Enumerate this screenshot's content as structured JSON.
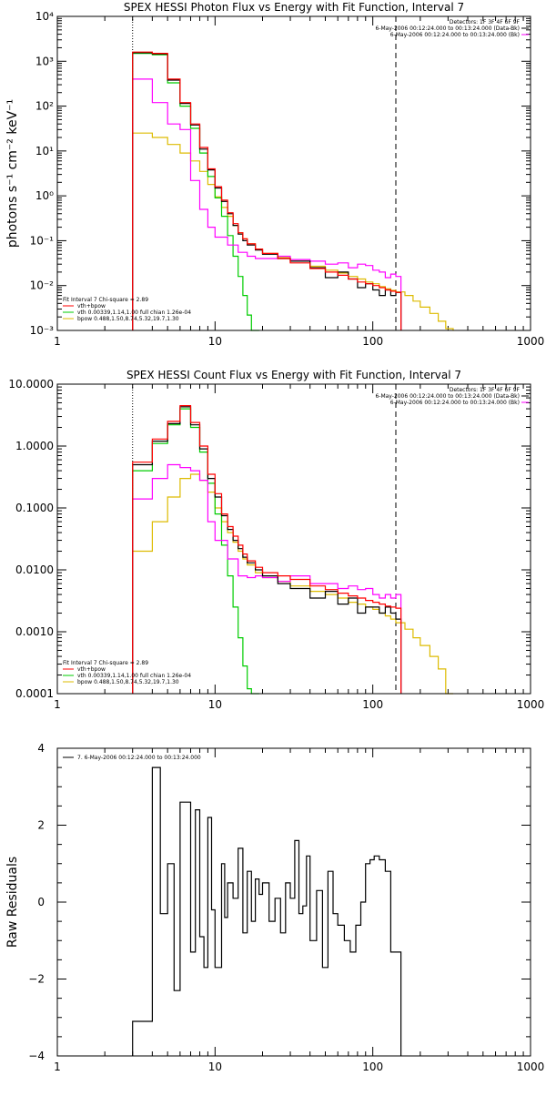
{
  "colors": {
    "sum": "#000000",
    "fit_total": "#ff0000",
    "vth": "#00cc00",
    "bpow": "#ddbb00",
    "bk": "#ff00ff",
    "marker": "#000000"
  },
  "chart_data": [
    {
      "type": "line",
      "step": true,
      "title": "SPEX HESSI Photon Flux vs Energy with Fit Function, Interval 7",
      "xlabel": "",
      "ylabel": "photons s⁻¹ cm⁻² keV⁻¹",
      "xscale": "log",
      "yscale": "log",
      "xlim": [
        1,
        1000
      ],
      "ylim": [
        0.001,
        10000
      ],
      "x_ticks": [
        "1",
        "10",
        "100",
        "1000"
      ],
      "y_ticks": [
        "10⁻³",
        "10⁻²",
        "10⁻¹",
        "10⁰",
        "10¹",
        "10²",
        "10³",
        "10⁴"
      ],
      "vlines": [
        {
          "x": 3,
          "style": "dotted"
        },
        {
          "x": 140,
          "style": "dashed"
        }
      ],
      "legend_right": {
        "detectors": "Detectors: 1F 3F 4F 6F 9F",
        "entries": [
          {
            "label": "6-May-2006 00:12:24.000 to 00:13:24.000 (Data-Bk)",
            "series": "sum"
          },
          {
            "label": "6-May-2006 00:12:24.000 to 00:13:24.000 (Bk)",
            "series": "bk"
          }
        ]
      },
      "legend_left": {
        "header": "Fit Interval  7   Chi-square = 2.89",
        "entries": [
          {
            "label": "vth+bpow",
            "series": "fit_total"
          },
          {
            "label": "vth 0.00339,1.14,1.00  full chian 1.26e-04",
            "series": "vth"
          },
          {
            "label": "bpow 0.488,1.50,8.74,5.32,19.7,1.30",
            "series": "bpow"
          }
        ]
      },
      "series": [
        {
          "key": "fit_total",
          "x": [
            3,
            4,
            5,
            6,
            7,
            8,
            9,
            10,
            11,
            12,
            13,
            14,
            15,
            16,
            18,
            20,
            25,
            30,
            40,
            50,
            60,
            70,
            80,
            90,
            100,
            110,
            120,
            130,
            140
          ],
          "values": [
            1600,
            1500,
            400,
            120,
            40,
            12,
            4,
            1.6,
            0.8,
            0.42,
            0.24,
            0.15,
            0.11,
            0.085,
            0.065,
            0.052,
            0.04,
            0.032,
            0.024,
            0.02,
            0.017,
            0.014,
            0.012,
            0.011,
            0.01,
            0.009,
            0.008,
            0.0075,
            0.007
          ]
        },
        {
          "key": "sum",
          "x": [
            3,
            4,
            5,
            6,
            7,
            8,
            9,
            10,
            11,
            12,
            13,
            14,
            15,
            16,
            18,
            20,
            25,
            30,
            40,
            50,
            60,
            70,
            80,
            90,
            100,
            110,
            120,
            130,
            140
          ],
          "values": [
            1550,
            1450,
            380,
            115,
            38,
            11,
            3.8,
            1.5,
            0.75,
            0.4,
            0.22,
            0.14,
            0.1,
            0.08,
            0.062,
            0.05,
            0.04,
            0.035,
            0.025,
            0.015,
            0.02,
            0.014,
            0.009,
            0.011,
            0.008,
            0.006,
            0.008,
            0.006,
            0.007
          ]
        },
        {
          "key": "vth",
          "x": [
            3,
            4,
            5,
            6,
            7,
            8,
            9,
            10,
            11,
            12,
            13,
            14,
            15,
            16,
            17,
            18
          ],
          "values": [
            1500,
            1400,
            330,
            100,
            32,
            9,
            2.7,
            0.9,
            0.35,
            0.13,
            0.045,
            0.016,
            0.006,
            0.0022,
            0.0008,
            0.0003
          ]
        },
        {
          "key": "bpow",
          "x": [
            3,
            4,
            5,
            6,
            7,
            8,
            9,
            10,
            11,
            12,
            13,
            14,
            15,
            16,
            18,
            20,
            25,
            30,
            40,
            50,
            60,
            70,
            80,
            90,
            100,
            110,
            120,
            130,
            140,
            160,
            180,
            200,
            230,
            260,
            290
          ],
          "values": [
            25,
            20,
            14,
            9,
            6,
            3.5,
            1.8,
            0.95,
            0.55,
            0.35,
            0.22,
            0.15,
            0.11,
            0.085,
            0.065,
            0.052,
            0.042,
            0.035,
            0.027,
            0.022,
            0.019,
            0.016,
            0.014,
            0.012,
            0.011,
            0.0095,
            0.0085,
            0.0078,
            0.0072,
            0.006,
            0.0045,
            0.0033,
            0.0024,
            0.0016,
            0.0011
          ]
        },
        {
          "key": "bk",
          "x": [
            3,
            4,
            5,
            6,
            7,
            8,
            9,
            10,
            12,
            14,
            16,
            18,
            20,
            25,
            30,
            40,
            50,
            60,
            70,
            80,
            90,
            100,
            110,
            120,
            130,
            140
          ],
          "values": [
            400,
            120,
            40,
            30,
            2.2,
            0.5,
            0.2,
            0.12,
            0.08,
            0.055,
            0.045,
            0.04,
            0.04,
            0.045,
            0.038,
            0.035,
            0.03,
            0.032,
            0.025,
            0.03,
            0.028,
            0.022,
            0.02,
            0.015,
            0.018,
            0.016
          ]
        }
      ]
    },
    {
      "type": "line",
      "step": true,
      "title": "SPEX HESSI Count Flux vs Energy with Fit Function, Interval 7",
      "xlabel": "",
      "ylabel": "",
      "xscale": "log",
      "yscale": "log",
      "xlim": [
        1,
        1000
      ],
      "ylim": [
        0.0001,
        10
      ],
      "x_ticks": [
        "1",
        "10",
        "100",
        "1000"
      ],
      "y_ticks": [
        "0.0001",
        "0.0010",
        "0.0100",
        "0.1000",
        "1.0000",
        "10.0000"
      ],
      "vlines": [
        {
          "x": 3,
          "style": "dotted"
        },
        {
          "x": 140,
          "style": "dashed"
        }
      ],
      "legend_right": {
        "detectors": "Detectors: 1F 3F 4F 6F 9F",
        "entries": [
          {
            "label": "6-May-2006 00:12:24.000 to 00:13:24.000 (Data-Bk)",
            "series": "sum"
          },
          {
            "label": "6-May-2006 00:12:24.000 to 00:13:24.000 (Bk)",
            "series": "bk"
          }
        ]
      },
      "legend_left": {
        "header": "Fit Interval  7   Chi-square = 2.89",
        "entries": [
          {
            "label": "vth+bpow",
            "series": "fit_total"
          },
          {
            "label": "vth 0.00339,1.14,1.00  full chian 1.26e-04",
            "series": "vth"
          },
          {
            "label": "bpow 0.488,1.50,8.74,5.32,19.7,1.30",
            "series": "bpow"
          }
        ]
      },
      "series": [
        {
          "key": "fit_total",
          "x": [
            3,
            4,
            5,
            6,
            7,
            8,
            9,
            10,
            11,
            12,
            13,
            14,
            15,
            16,
            18,
            20,
            25,
            30,
            40,
            50,
            60,
            70,
            80,
            90,
            100,
            110,
            120,
            130,
            140
          ],
          "values": [
            0.55,
            1.3,
            2.5,
            4.5,
            2.4,
            1.0,
            0.35,
            0.17,
            0.08,
            0.05,
            0.035,
            0.025,
            0.018,
            0.014,
            0.011,
            0.009,
            0.008,
            0.007,
            0.0055,
            0.0048,
            0.0042,
            0.0038,
            0.0035,
            0.0032,
            0.003,
            0.0028,
            0.0026,
            0.0025,
            0.0024
          ]
        },
        {
          "key": "sum",
          "x": [
            3,
            4,
            5,
            6,
            7,
            8,
            9,
            10,
            11,
            12,
            13,
            14,
            15,
            16,
            18,
            20,
            25,
            30,
            40,
            50,
            60,
            70,
            80,
            90,
            100,
            110,
            120,
            130,
            140
          ],
          "values": [
            0.5,
            1.2,
            2.3,
            4.3,
            2.2,
            0.9,
            0.3,
            0.15,
            0.075,
            0.045,
            0.03,
            0.022,
            0.016,
            0.013,
            0.01,
            0.008,
            0.006,
            0.005,
            0.0035,
            0.0045,
            0.0028,
            0.0035,
            0.002,
            0.0025,
            0.0025,
            0.002,
            0.0025,
            0.002,
            0.0016
          ]
        },
        {
          "key": "vth",
          "x": [
            3,
            4,
            5,
            6,
            7,
            8,
            9,
            10,
            11,
            12,
            13,
            14,
            15,
            16,
            17,
            18
          ],
          "values": [
            0.4,
            1.1,
            2.2,
            4.0,
            2.0,
            0.8,
            0.25,
            0.08,
            0.025,
            0.008,
            0.0025,
            0.0008,
            0.00028,
            0.00012,
            0.0001,
            0.0001
          ]
        },
        {
          "key": "bpow",
          "x": [
            3,
            4,
            5,
            6,
            7,
            8,
            9,
            10,
            11,
            12,
            13,
            14,
            15,
            16,
            18,
            20,
            25,
            30,
            40,
            50,
            60,
            70,
            80,
            90,
            100,
            110,
            120,
            130,
            140,
            160,
            180,
            200,
            230,
            260,
            290
          ],
          "values": [
            0.02,
            0.06,
            0.15,
            0.3,
            0.35,
            0.28,
            0.18,
            0.1,
            0.06,
            0.04,
            0.028,
            0.02,
            0.015,
            0.012,
            0.009,
            0.0075,
            0.0065,
            0.0055,
            0.0045,
            0.004,
            0.0035,
            0.003,
            0.0028,
            0.0025,
            0.0023,
            0.002,
            0.0018,
            0.0016,
            0.0014,
            0.0011,
            0.0008,
            0.0006,
            0.0004,
            0.00025,
            0.0001
          ]
        },
        {
          "key": "bk",
          "x": [
            3,
            4,
            5,
            6,
            7,
            8,
            9,
            10,
            12,
            14,
            16,
            18,
            20,
            25,
            30,
            40,
            50,
            60,
            70,
            80,
            90,
            100,
            110,
            120,
            130,
            140
          ],
          "values": [
            0.14,
            0.3,
            0.5,
            0.45,
            0.4,
            0.28,
            0.06,
            0.03,
            0.015,
            0.008,
            0.0075,
            0.008,
            0.0075,
            0.0065,
            0.008,
            0.006,
            0.006,
            0.005,
            0.0055,
            0.0048,
            0.005,
            0.004,
            0.0035,
            0.004,
            0.0035,
            0.004
          ]
        }
      ]
    },
    {
      "type": "line",
      "step": true,
      "title": "",
      "xlabel": "",
      "ylabel": "Raw Residuals",
      "xscale": "log",
      "yscale": "linear",
      "xlim": [
        1,
        1000
      ],
      "ylim": [
        -4,
        4
      ],
      "x_ticks": [
        "1",
        "10",
        "100",
        "1000"
      ],
      "y_ticks": [
        "−4",
        "−2",
        "0",
        "2",
        "4"
      ],
      "legend_left": {
        "header": "",
        "entries": [
          {
            "label": "7.  6-May-2006 00:12:24.000 to 00:13:24.000",
            "series": "sum"
          }
        ]
      },
      "series": [
        {
          "key": "sum",
          "x": [
            3,
            4,
            4.5,
            5,
            5.5,
            6,
            7,
            7.5,
            8,
            8.5,
            9,
            9.5,
            10,
            11,
            11.5,
            12,
            13,
            14,
            15,
            16,
            17,
            18,
            19,
            20,
            22,
            24,
            26,
            28,
            30,
            32,
            34,
            36,
            38,
            40,
            44,
            48,
            52,
            56,
            60,
            66,
            72,
            78,
            84,
            90,
            96,
            102,
            110,
            120,
            130,
            140
          ],
          "values": [
            -3.1,
            3.5,
            -0.3,
            1.0,
            -2.3,
            2.6,
            -1.3,
            2.4,
            -0.9,
            -1.7,
            2.2,
            -0.2,
            -1.7,
            1.0,
            -0.4,
            0.5,
            0.1,
            1.4,
            -0.8,
            0.8,
            -0.5,
            0.6,
            0.2,
            0.5,
            -0.5,
            0.1,
            -0.8,
            0.5,
            0.1,
            1.6,
            -0.3,
            -0.1,
            1.2,
            -1.0,
            0.3,
            -1.7,
            0.8,
            -0.3,
            -0.6,
            -1.0,
            -1.3,
            -0.6,
            0.0,
            1.0,
            1.1,
            1.2,
            1.1,
            0.8,
            -1.3,
            -1.3
          ]
        }
      ]
    }
  ]
}
